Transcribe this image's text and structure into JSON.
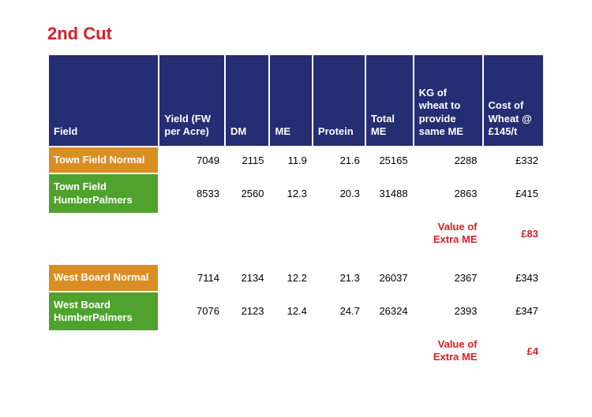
{
  "title": "2nd Cut",
  "colors": {
    "title": "#d72027",
    "header_bg": "#252d73",
    "header_text": "#ffffff",
    "orange": "#d98e24",
    "green": "#4fa22e",
    "red": "#d72027",
    "border": "#ffffff",
    "cell_text": "#000000"
  },
  "table": {
    "headers": {
      "field": "Field",
      "yield": "Yield (FW per Acre)",
      "dm": "DM",
      "me": "ME",
      "protein": "Protein",
      "totalme": "Total ME",
      "kg": "KG of wheat to provide same ME",
      "cost": "Cost of Wheat @ £145/t"
    },
    "groups": [
      {
        "rows": [
          {
            "color": "#d98e24",
            "field": "Town Field Normal",
            "yield": "7049",
            "dm": "2115",
            "me": "11.9",
            "protein": "21.6",
            "totalme": "25165",
            "kg": "2288",
            "cost": "£332"
          },
          {
            "color": "#4fa22e",
            "field": "Town Field HumberPalmers",
            "yield": "8533",
            "dm": "2560",
            "me": "12.3",
            "protein": "20.3",
            "totalme": "31488",
            "kg": "2863",
            "cost": "£415"
          }
        ],
        "value_label": "Value of Extra ME",
        "value_amount": "£83"
      },
      {
        "rows": [
          {
            "color": "#d98e24",
            "field": "West Board Normal",
            "yield": "7114",
            "dm": "2134",
            "me": "12.2",
            "protein": "21.3",
            "totalme": "26037",
            "kg": "2367",
            "cost": "£343"
          },
          {
            "color": "#4fa22e",
            "field": "West Board HumberPalmers",
            "yield": "7076",
            "dm": "2123",
            "me": "12.4",
            "protein": "24.7",
            "totalme": "26324",
            "kg": "2393",
            "cost": "£347"
          }
        ],
        "value_label": "Value of Extra ME",
        "value_amount": "£4"
      }
    ]
  }
}
